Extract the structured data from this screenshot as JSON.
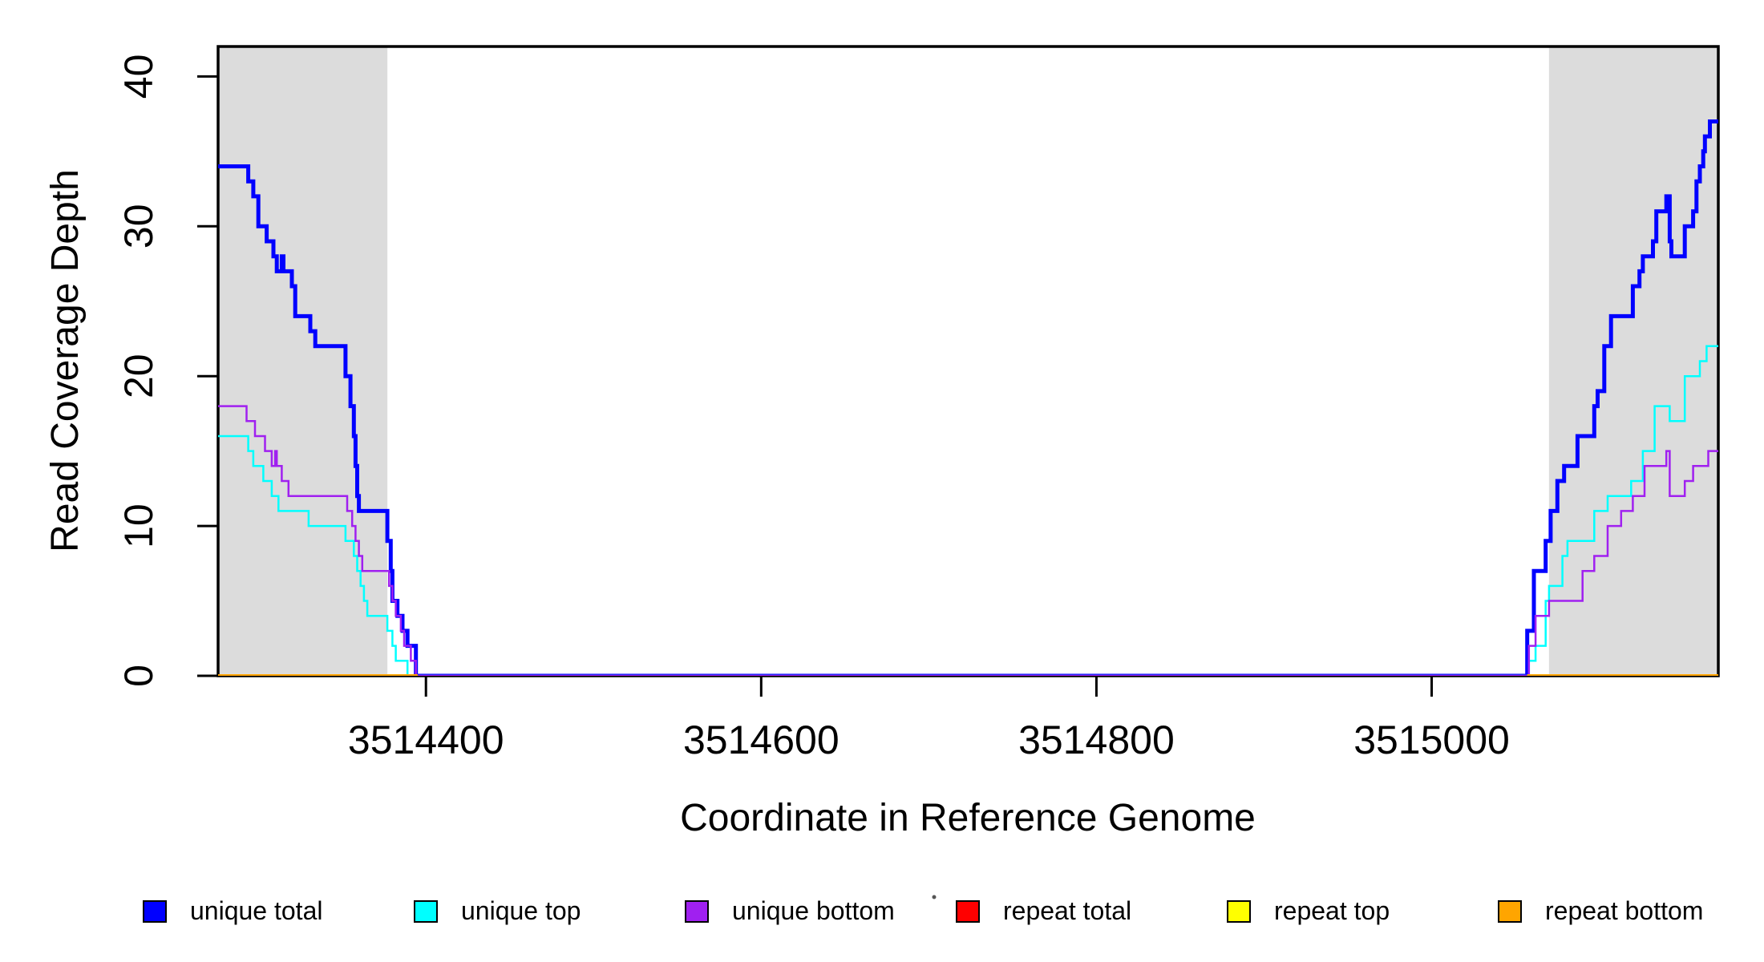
{
  "chart_data": {
    "type": "line",
    "step": true,
    "title": "",
    "xlabel": "Coordinate in Reference Genome",
    "ylabel": "Read Coverage Depth",
    "xlim": [
      3514276,
      3515171
    ],
    "ylim": [
      0,
      42
    ],
    "xticks": [
      3514400,
      3514600,
      3514800,
      3515000
    ],
    "xtick_labels": [
      "3514400",
      "3514600",
      "3514800",
      "3515000"
    ],
    "yticks": [
      0,
      10,
      20,
      30,
      40
    ],
    "ytick_labels": [
      "0",
      "10",
      "20",
      "30",
      "40"
    ],
    "grid": false,
    "legend_position": "bottom",
    "background_color": "#ffffff",
    "highlight_color": "#DCDCDC",
    "highlight_regions": [
      {
        "name": "left-repeat-region",
        "x0": 3514276,
        "x1": 3514377
      },
      {
        "name": "right-repeat-region",
        "x0": 3515070,
        "x1": 3515171
      }
    ],
    "series": [
      {
        "name": "unique total",
        "color": "#0000FF",
        "linewidth": 5,
        "segments": [
          [
            [
              3514276,
              34
            ],
            [
              3514294,
              33
            ],
            [
              3514297,
              32
            ],
            [
              3514300,
              30
            ],
            [
              3514305,
              29
            ],
            [
              3514309,
              28
            ],
            [
              3514311,
              27
            ],
            [
              3514314,
              28
            ],
            [
              3514315,
              27
            ],
            [
              3514320,
              26
            ],
            [
              3514322,
              24
            ],
            [
              3514331,
              23
            ],
            [
              3514334,
              22
            ],
            [
              3514352,
              20
            ],
            [
              3514355,
              18
            ],
            [
              3514357,
              16
            ],
            [
              3514358,
              14
            ],
            [
              3514359,
              12
            ],
            [
              3514360,
              11
            ],
            [
              3514377,
              9
            ],
            [
              3514379,
              7
            ],
            [
              3514380,
              5
            ],
            [
              3514383,
              4
            ],
            [
              3514386,
              3
            ],
            [
              3514389,
              2
            ],
            [
              3514394,
              0
            ],
            [
              3515057,
              3
            ],
            [
              3515061,
              7
            ],
            [
              3515068,
              9
            ],
            [
              3515071,
              11
            ],
            [
              3515075,
              13
            ],
            [
              3515079,
              14
            ],
            [
              3515087,
              16
            ],
            [
              3515097,
              18
            ],
            [
              3515099,
              19
            ],
            [
              3515103,
              22
            ],
            [
              3515107,
              24
            ],
            [
              3515120,
              26
            ],
            [
              3515124,
              27
            ],
            [
              3515126,
              28
            ],
            [
              3515132,
              29
            ],
            [
              3515134,
              31
            ],
            [
              3515140,
              32
            ],
            [
              3515142,
              29
            ],
            [
              3515143,
              28
            ],
            [
              3515151,
              30
            ],
            [
              3515156,
              31
            ],
            [
              3515158,
              33
            ],
            [
              3515160,
              34
            ],
            [
              3515162,
              35
            ],
            [
              3515163,
              36
            ],
            [
              3515166,
              37
            ],
            [
              3515171,
              37
            ]
          ]
        ]
      },
      {
        "name": "unique top",
        "color": "#00FFFF",
        "linewidth": 2.5,
        "segments": [
          [
            [
              3514276,
              16
            ],
            [
              3514294,
              15
            ],
            [
              3514297,
              14
            ],
            [
              3514303,
              13
            ],
            [
              3514308,
              12
            ],
            [
              3514312,
              11
            ],
            [
              3514330,
              10
            ],
            [
              3514352,
              9
            ],
            [
              3514357,
              8
            ],
            [
              3514359,
              7
            ],
            [
              3514361,
              6
            ],
            [
              3514363,
              5
            ],
            [
              3514365,
              4
            ],
            [
              3514377,
              3
            ],
            [
              3514380,
              2
            ],
            [
              3514382,
              1
            ],
            [
              3514389,
              0
            ],
            [
              3515058,
              1
            ],
            [
              3515062,
              2
            ],
            [
              3515068,
              5
            ],
            [
              3515070,
              6
            ],
            [
              3515078,
              8
            ],
            [
              3515081,
              9
            ],
            [
              3515097,
              11
            ],
            [
              3515105,
              12
            ],
            [
              3515119,
              13
            ],
            [
              3515126,
              15
            ],
            [
              3515133,
              18
            ],
            [
              3515142,
              17
            ],
            [
              3515151,
              20
            ],
            [
              3515160,
              21
            ],
            [
              3515164,
              22
            ],
            [
              3515171,
              22
            ]
          ]
        ]
      },
      {
        "name": "unique bottom",
        "color": "#A020F0",
        "linewidth": 2.5,
        "segments": [
          [
            [
              3514276,
              18
            ],
            [
              3514293,
              17
            ],
            [
              3514298,
              16
            ],
            [
              3514304,
              15
            ],
            [
              3514308,
              14
            ],
            [
              3514310,
              15
            ],
            [
              3514311,
              14
            ],
            [
              3514314,
              13
            ],
            [
              3514318,
              12
            ],
            [
              3514353,
              11
            ],
            [
              3514356,
              10
            ],
            [
              3514358,
              9
            ],
            [
              3514360,
              8
            ],
            [
              3514362,
              7
            ],
            [
              3514378,
              6
            ],
            [
              3514380,
              5
            ],
            [
              3514382,
              4
            ],
            [
              3514385,
              3
            ],
            [
              3514387,
              2
            ],
            [
              3514391,
              1
            ],
            [
              3514394,
              0
            ],
            [
              3515058,
              2
            ],
            [
              3515062,
              4
            ],
            [
              3515070,
              5
            ],
            [
              3515090,
              7
            ],
            [
              3515097,
              8
            ],
            [
              3515105,
              10
            ],
            [
              3515113,
              11
            ],
            [
              3515120,
              12
            ],
            [
              3515127,
              14
            ],
            [
              3515140,
              15
            ],
            [
              3515142,
              12
            ],
            [
              3515151,
              13
            ],
            [
              3515156,
              14
            ],
            [
              3515165,
              15
            ],
            [
              3515171,
              15
            ]
          ]
        ]
      },
      {
        "name": "repeat total",
        "color": "#FF0000",
        "linewidth": 3,
        "segments": [
          [
            [
              3514276,
              0
            ],
            [
              3514395,
              0
            ]
          ],
          [
            [
              3515057,
              0
            ],
            [
              3515171,
              0
            ]
          ]
        ]
      },
      {
        "name": "repeat top",
        "color": "#FFFF00",
        "linewidth": 3,
        "segments": [
          [
            [
              3514276,
              0
            ],
            [
              3514395,
              0
            ]
          ],
          [
            [
              3515057,
              0
            ],
            [
              3515171,
              0
            ]
          ]
        ]
      },
      {
        "name": "repeat bottom",
        "color": "#FFA500",
        "linewidth": 4,
        "segments": [
          [
            [
              3514276,
              0
            ],
            [
              3514395,
              0
            ]
          ],
          [
            [
              3515057,
              0
            ],
            [
              3515171,
              0
            ]
          ]
        ]
      }
    ],
    "legend": [
      {
        "label": "unique total",
        "color": "#0000FF"
      },
      {
        "label": "unique top",
        "color": "#00FFFF"
      },
      {
        "label": "unique bottom",
        "color": "#A020F0"
      },
      {
        "label": "repeat total",
        "color": "#FF0000"
      },
      {
        "label": "repeat top",
        "color": "#FFFF00"
      },
      {
        "label": "repeat bottom",
        "color": "#FFA500"
      }
    ],
    "axis_color": "#000000"
  }
}
